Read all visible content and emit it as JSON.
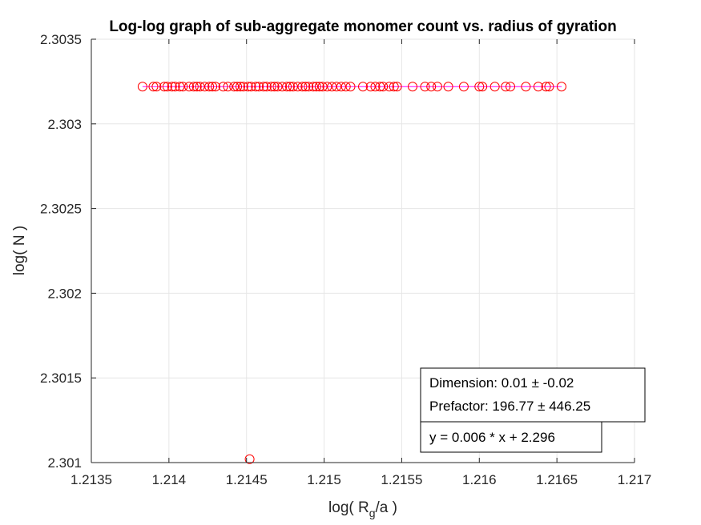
{
  "chart_data": {
    "type": "scatter",
    "title": "Log-log graph of sub-aggregate monomer count vs. radius of gyration",
    "xlabel_main": "log( R",
    "xlabel_sub": "g",
    "xlabel_tail": "/a )",
    "ylabel": "log( N )",
    "xlim": [
      1.2135,
      1.217
    ],
    "ylim": [
      2.301,
      2.3035
    ],
    "x_ticks": [
      1.2135,
      1.214,
      1.2145,
      1.215,
      1.2155,
      1.216,
      1.2165,
      1.217
    ],
    "x_tick_labels": [
      "1.2135",
      "1.214",
      "1.2145",
      "1.215",
      "1.2155",
      "1.216",
      "1.2165",
      "1.217"
    ],
    "y_ticks": [
      2.301,
      2.3015,
      2.302,
      2.3025,
      2.303,
      2.3035
    ],
    "y_tick_labels": [
      "2.301",
      "2.3015",
      "2.302",
      "2.3025",
      "2.303",
      "2.3035"
    ],
    "grid": true,
    "marker_color": "#ff0000",
    "fit_line_color": "#ff00ff",
    "series": [
      {
        "marker": "circle",
        "x": [
          1.21383,
          1.2139,
          1.21392,
          1.21397,
          1.21399,
          1.21402,
          1.21404,
          1.21407,
          1.21409,
          1.21413,
          1.21416,
          1.21418,
          1.2142,
          1.21423,
          1.21426,
          1.21428,
          1.2143,
          1.21435,
          1.21438,
          1.21442,
          1.21444,
          1.21446,
          1.21448,
          1.21451,
          1.21453,
          1.21456,
          1.21458,
          1.21461,
          1.21463,
          1.21466,
          1.21468,
          1.2147,
          1.21473,
          1.21476,
          1.21478,
          1.2148,
          1.21483,
          1.21486,
          1.21488,
          1.2149,
          1.21493,
          1.21495,
          1.21497,
          1.21499,
          1.21502,
          1.21505,
          1.21508,
          1.21511,
          1.21514,
          1.21517,
          1.21525,
          1.2153,
          1.21533,
          1.21536,
          1.21538,
          1.21542,
          1.21545,
          1.21547,
          1.21557,
          1.21565,
          1.21569,
          1.21573,
          1.2158,
          1.2159,
          1.216,
          1.21602,
          1.2161,
          1.21617,
          1.2162,
          1.2163,
          1.21638,
          1.21643,
          1.21645,
          1.21653
        ],
        "y": [
          2.30322,
          2.30322,
          2.30322,
          2.30322,
          2.30322,
          2.30322,
          2.30322,
          2.30322,
          2.30322,
          2.30322,
          2.30322,
          2.30322,
          2.30322,
          2.30322,
          2.30322,
          2.30322,
          2.30322,
          2.30322,
          2.30322,
          2.30322,
          2.30322,
          2.30322,
          2.30322,
          2.30322,
          2.30322,
          2.30322,
          2.30322,
          2.30322,
          2.30322,
          2.30322,
          2.30322,
          2.30322,
          2.30322,
          2.30322,
          2.30322,
          2.30322,
          2.30322,
          2.30322,
          2.30322,
          2.30322,
          2.30322,
          2.30322,
          2.30322,
          2.30322,
          2.30322,
          2.30322,
          2.30322,
          2.30322,
          2.30322,
          2.30322,
          2.30322,
          2.30322,
          2.30322,
          2.30322,
          2.30322,
          2.30322,
          2.30322,
          2.30322,
          2.30322,
          2.30322,
          2.30322,
          2.30322,
          2.30322,
          2.30322,
          2.30322,
          2.30322,
          2.30322,
          2.30322,
          2.30322,
          2.30322,
          2.30322,
          2.30322,
          2.30322,
          2.30322
        ]
      },
      {
        "marker": "circle",
        "x": [
          1.21452
        ],
        "y": [
          2.30102
        ]
      }
    ],
    "fit_line": {
      "x": [
        1.21383,
        1.21653
      ],
      "y": [
        2.30322,
        2.30322
      ]
    },
    "annotations": {
      "box1_line1": "Dimension: 0.01 ± -0.02",
      "box1_line2": "Prefactor: 196.77 ± 446.25",
      "box2_line1": "y = 0.006 * x + 2.296"
    }
  }
}
